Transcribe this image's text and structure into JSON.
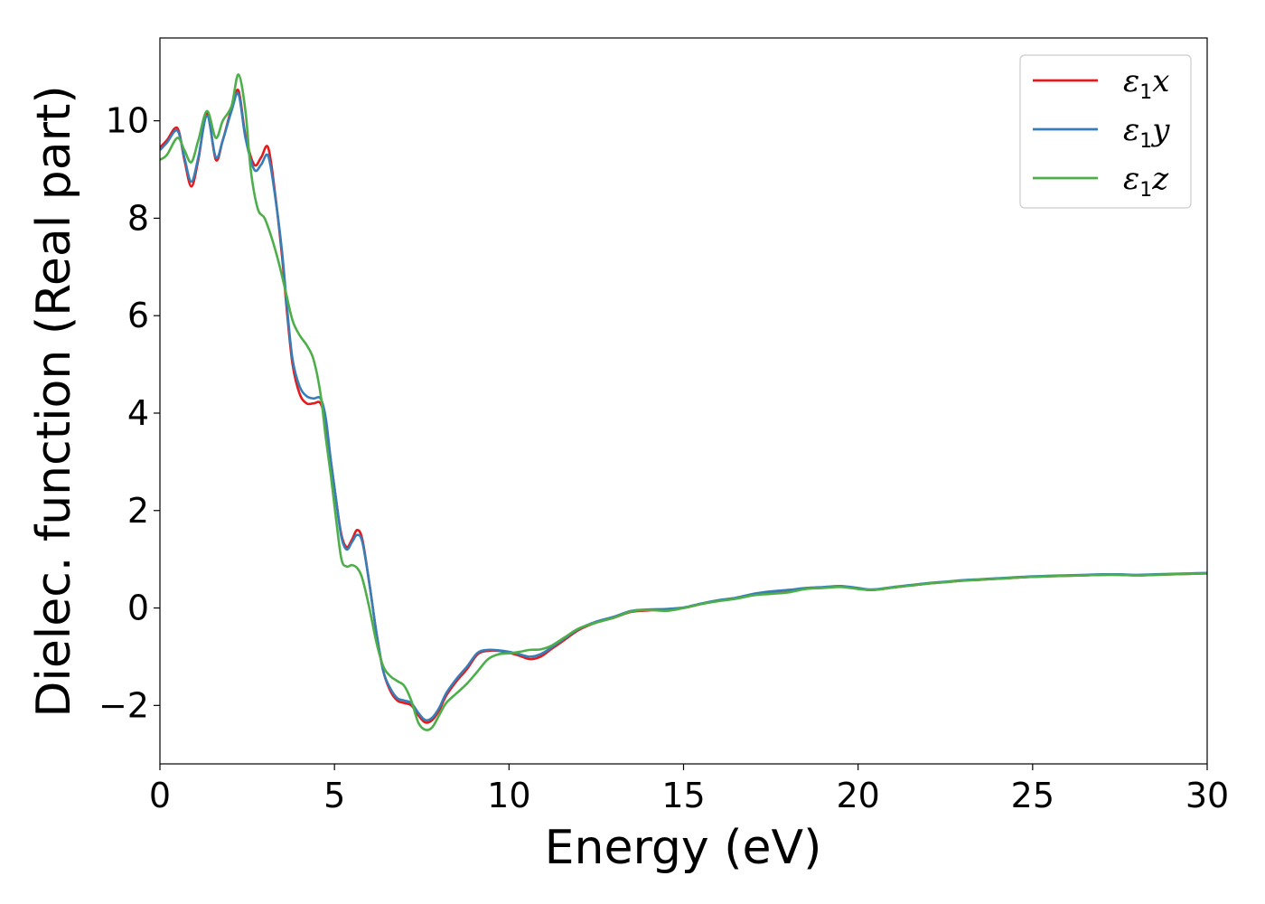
{
  "chart_data": {
    "type": "line",
    "xlabel": "Energy (eV)",
    "ylabel": "Dielec. function (Real part)",
    "xlim": [
      0,
      30
    ],
    "ylim": [
      -3.2,
      11.7
    ],
    "xticks": [
      0,
      5,
      10,
      15,
      20,
      25,
      30
    ],
    "yticks": [
      -2,
      0,
      2,
      4,
      6,
      8,
      10
    ],
    "ytick_labels": [
      "−2",
      "0",
      "2",
      "4",
      "6",
      "8",
      "10"
    ],
    "grid": false,
    "legend_position": "top-right",
    "series": [
      {
        "name": "ε1x",
        "legend_base": "ε",
        "legend_sub": "1",
        "legend_var": "x",
        "color": "#e41a1c",
        "x": [
          0,
          0.2,
          0.5,
          0.7,
          0.9,
          1.1,
          1.35,
          1.6,
          1.8,
          2.05,
          2.25,
          2.45,
          2.7,
          2.9,
          3.1,
          3.3,
          3.5,
          3.65,
          3.8,
          4.0,
          4.2,
          4.4,
          4.6,
          4.75,
          4.9,
          5.05,
          5.2,
          5.35,
          5.5,
          5.65,
          5.8,
          6.0,
          6.2,
          6.4,
          6.6,
          6.8,
          7.0,
          7.2,
          7.4,
          7.6,
          7.8,
          8.0,
          8.2,
          8.5,
          8.8,
          9.1,
          9.4,
          9.7,
          10.0,
          10.3,
          10.6,
          10.9,
          11.2,
          11.6,
          12.0,
          12.5,
          13.0,
          13.5,
          14.0,
          14.5,
          15.0,
          15.5,
          16.0,
          16.5,
          17.0,
          17.5,
          18.0,
          18.5,
          19.0,
          19.5,
          20.0,
          20.3,
          20.6,
          21.0,
          21.5,
          22.0,
          22.5,
          23.0,
          23.5,
          24.0,
          24.5,
          25.0,
          25.5,
          26.0,
          26.5,
          27.0,
          27.5,
          28.0,
          28.5,
          29.0,
          29.5,
          30.0
        ],
        "y": [
          9.45,
          9.6,
          9.85,
          9.2,
          8.65,
          9.2,
          10.15,
          9.2,
          9.6,
          10.25,
          10.62,
          9.7,
          9.1,
          9.25,
          9.45,
          8.5,
          7.2,
          6.0,
          5.0,
          4.4,
          4.2,
          4.2,
          4.2,
          3.8,
          3.0,
          2.2,
          1.5,
          1.25,
          1.4,
          1.6,
          1.4,
          0.5,
          -0.5,
          -1.3,
          -1.7,
          -1.9,
          -1.95,
          -2.0,
          -2.2,
          -2.35,
          -2.3,
          -2.1,
          -1.8,
          -1.5,
          -1.25,
          -0.95,
          -0.88,
          -0.88,
          -0.92,
          -0.98,
          -1.05,
          -1.0,
          -0.85,
          -0.65,
          -0.45,
          -0.3,
          -0.2,
          -0.08,
          -0.05,
          -0.03,
          0.0,
          0.08,
          0.15,
          0.2,
          0.28,
          0.33,
          0.36,
          0.4,
          0.42,
          0.44,
          0.4,
          0.37,
          0.38,
          0.42,
          0.46,
          0.5,
          0.53,
          0.56,
          0.58,
          0.6,
          0.62,
          0.64,
          0.65,
          0.66,
          0.67,
          0.68,
          0.68,
          0.67,
          0.68,
          0.69,
          0.7,
          0.71
        ]
      },
      {
        "name": "ε1y",
        "legend_base": "ε",
        "legend_sub": "1",
        "legend_var": "y",
        "color": "#377eb8",
        "x": [
          0,
          0.2,
          0.5,
          0.7,
          0.9,
          1.1,
          1.35,
          1.6,
          1.8,
          2.05,
          2.25,
          2.45,
          2.7,
          2.9,
          3.1,
          3.3,
          3.5,
          3.65,
          3.8,
          4.0,
          4.2,
          4.4,
          4.6,
          4.75,
          4.9,
          5.05,
          5.2,
          5.35,
          5.5,
          5.65,
          5.8,
          6.0,
          6.2,
          6.4,
          6.6,
          6.8,
          7.0,
          7.2,
          7.4,
          7.6,
          7.8,
          8.0,
          8.2,
          8.5,
          8.8,
          9.1,
          9.4,
          9.7,
          10.0,
          10.3,
          10.6,
          10.9,
          11.2,
          11.6,
          12.0,
          12.5,
          13.0,
          13.5,
          14.0,
          14.5,
          15.0,
          15.5,
          16.0,
          16.5,
          17.0,
          17.5,
          18.0,
          18.5,
          19.0,
          19.5,
          20.0,
          20.3,
          20.6,
          21.0,
          21.5,
          22.0,
          22.5,
          23.0,
          23.5,
          24.0,
          24.5,
          25.0,
          25.5,
          26.0,
          26.5,
          27.0,
          27.5,
          28.0,
          28.5,
          29.0,
          29.5,
          30.0
        ],
        "y": [
          9.4,
          9.55,
          9.8,
          9.25,
          8.75,
          9.25,
          10.1,
          9.25,
          9.6,
          10.2,
          10.55,
          9.65,
          9.0,
          9.1,
          9.28,
          8.45,
          7.3,
          6.1,
          5.1,
          4.55,
          4.35,
          4.3,
          4.3,
          3.9,
          3.0,
          2.2,
          1.45,
          1.2,
          1.35,
          1.5,
          1.35,
          0.5,
          -0.5,
          -1.3,
          -1.65,
          -1.85,
          -1.9,
          -1.95,
          -2.15,
          -2.3,
          -2.25,
          -2.05,
          -1.75,
          -1.45,
          -1.2,
          -0.92,
          -0.86,
          -0.87,
          -0.9,
          -0.95,
          -1.0,
          -0.95,
          -0.82,
          -0.62,
          -0.43,
          -0.28,
          -0.18,
          -0.06,
          -0.03,
          -0.02,
          0.01,
          0.09,
          0.16,
          0.21,
          0.29,
          0.34,
          0.37,
          0.41,
          0.43,
          0.45,
          0.41,
          0.38,
          0.39,
          0.43,
          0.47,
          0.51,
          0.54,
          0.57,
          0.59,
          0.61,
          0.63,
          0.65,
          0.66,
          0.67,
          0.68,
          0.69,
          0.69,
          0.68,
          0.69,
          0.7,
          0.71,
          0.72
        ]
      },
      {
        "name": "ε1z",
        "legend_base": "ε",
        "legend_sub": "1",
        "legend_var": "z",
        "color": "#4daf4a",
        "x": [
          0,
          0.2,
          0.5,
          0.7,
          0.9,
          1.1,
          1.35,
          1.6,
          1.8,
          2.05,
          2.25,
          2.45,
          2.6,
          2.8,
          3.0,
          3.2,
          3.4,
          3.6,
          3.8,
          4.0,
          4.2,
          4.4,
          4.6,
          4.75,
          4.9,
          5.05,
          5.2,
          5.35,
          5.5,
          5.65,
          5.8,
          6.0,
          6.2,
          6.4,
          6.6,
          6.8,
          7.0,
          7.2,
          7.4,
          7.6,
          7.8,
          8.0,
          8.2,
          8.5,
          8.8,
          9.1,
          9.4,
          9.7,
          10.0,
          10.3,
          10.6,
          10.9,
          11.2,
          11.6,
          12.0,
          12.5,
          13.0,
          13.5,
          14.0,
          14.5,
          15.0,
          15.5,
          16.0,
          16.5,
          17.0,
          17.5,
          18.0,
          18.5,
          19.0,
          19.5,
          20.0,
          20.3,
          20.6,
          21.0,
          21.5,
          22.0,
          22.5,
          23.0,
          23.5,
          24.0,
          24.5,
          25.0,
          25.5,
          26.0,
          26.5,
          27.0,
          27.5,
          28.0,
          28.5,
          29.0,
          29.5,
          30.0
        ],
        "y": [
          9.2,
          9.3,
          9.65,
          9.4,
          9.15,
          9.6,
          10.2,
          9.65,
          10.0,
          10.3,
          10.95,
          10.2,
          9.0,
          8.2,
          8.0,
          7.6,
          7.1,
          6.5,
          5.9,
          5.6,
          5.4,
          5.1,
          4.4,
          3.5,
          2.7,
          1.8,
          1.0,
          0.85,
          0.88,
          0.82,
          0.6,
          0.0,
          -0.7,
          -1.2,
          -1.4,
          -1.5,
          -1.6,
          -1.9,
          -2.35,
          -2.5,
          -2.45,
          -2.2,
          -1.95,
          -1.75,
          -1.55,
          -1.3,
          -1.05,
          -0.95,
          -0.93,
          -0.9,
          -0.86,
          -0.85,
          -0.78,
          -0.6,
          -0.42,
          -0.3,
          -0.2,
          -0.07,
          -0.04,
          -0.06,
          0.0,
          0.08,
          0.14,
          0.19,
          0.26,
          0.29,
          0.32,
          0.39,
          0.41,
          0.43,
          0.39,
          0.37,
          0.38,
          0.42,
          0.46,
          0.5,
          0.53,
          0.56,
          0.58,
          0.6,
          0.62,
          0.64,
          0.65,
          0.66,
          0.67,
          0.68,
          0.68,
          0.67,
          0.68,
          0.69,
          0.7,
          0.71
        ]
      }
    ]
  }
}
